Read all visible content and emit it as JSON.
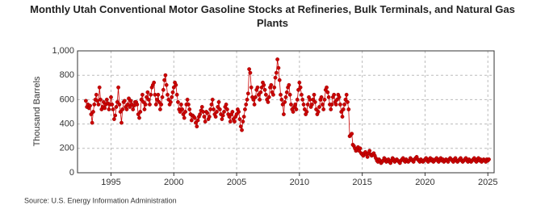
{
  "chart_data": {
    "type": "line",
    "title": "Monthly Utah Conventional Motor Gasoline Stocks at Refineries, Bulk Terminals, and Natural Gas Plants",
    "ylabel": "Thousand Barrels",
    "source": "Source: U.S. Energy Information Administration",
    "color": "#cc0000",
    "grid": true,
    "ylim": [
      0,
      1000
    ],
    "yticks": [
      0,
      200,
      400,
      600,
      800,
      {
        "value": 1000,
        "label": "1,000"
      }
    ],
    "xlim": [
      "1992-05",
      "2025-07"
    ],
    "xticks": [
      "1995",
      "2000",
      "2005",
      "2010",
      "2015",
      "2020",
      "2025"
    ],
    "x": [
      "1993-01",
      "1993-02",
      "1993-03",
      "1993-04",
      "1993-05",
      "1993-06",
      "1993-07",
      "1993-08",
      "1993-09",
      "1993-10",
      "1993-11",
      "1993-12",
      "1994-01",
      "1994-02",
      "1994-03",
      "1994-04",
      "1994-05",
      "1994-06",
      "1994-07",
      "1994-08",
      "1994-09",
      "1994-10",
      "1994-11",
      "1994-12",
      "1995-01",
      "1995-02",
      "1995-03",
      "1995-04",
      "1995-05",
      "1995-06",
      "1995-07",
      "1995-08",
      "1995-09",
      "1995-10",
      "1995-11",
      "1995-12",
      "1996-01",
      "1996-02",
      "1996-03",
      "1996-04",
      "1996-05",
      "1996-06",
      "1996-07",
      "1996-08",
      "1996-09",
      "1996-10",
      "1996-11",
      "1996-12",
      "1997-01",
      "1997-02",
      "1997-03",
      "1997-04",
      "1997-05",
      "1997-06",
      "1997-07",
      "1997-08",
      "1997-09",
      "1997-10",
      "1997-11",
      "1997-12",
      "1998-01",
      "1998-02",
      "1998-03",
      "1998-04",
      "1998-05",
      "1998-06",
      "1998-07",
      "1998-08",
      "1998-09",
      "1998-10",
      "1998-11",
      "1998-12",
      "1999-01",
      "1999-02",
      "1999-03",
      "1999-04",
      "1999-05",
      "1999-06",
      "1999-07",
      "1999-08",
      "1999-09",
      "1999-10",
      "1999-11",
      "1999-12",
      "2000-01",
      "2000-02",
      "2000-03",
      "2000-04",
      "2000-05",
      "2000-06",
      "2000-07",
      "2000-08",
      "2000-09",
      "2000-10",
      "2000-11",
      "2000-12",
      "2001-01",
      "2001-02",
      "2001-03",
      "2001-04",
      "2001-05",
      "2001-06",
      "2001-07",
      "2001-08",
      "2001-09",
      "2001-10",
      "2001-11",
      "2001-12",
      "2002-01",
      "2002-02",
      "2002-03",
      "2002-04",
      "2002-05",
      "2002-06",
      "2002-07",
      "2002-08",
      "2002-09",
      "2002-10",
      "2002-11",
      "2002-12",
      "2003-01",
      "2003-02",
      "2003-03",
      "2003-04",
      "2003-05",
      "2003-06",
      "2003-07",
      "2003-08",
      "2003-09",
      "2003-10",
      "2003-11",
      "2003-12",
      "2004-01",
      "2004-02",
      "2004-03",
      "2004-04",
      "2004-05",
      "2004-06",
      "2004-07",
      "2004-08",
      "2004-09",
      "2004-10",
      "2004-11",
      "2004-12",
      "2005-01",
      "2005-02",
      "2005-03",
      "2005-04",
      "2005-05",
      "2005-06",
      "2005-07",
      "2005-08",
      "2005-09",
      "2005-10",
      "2005-11",
      "2005-12",
      "2006-01",
      "2006-02",
      "2006-03",
      "2006-04",
      "2006-05",
      "2006-06",
      "2006-07",
      "2006-08",
      "2006-09",
      "2006-10",
      "2006-11",
      "2006-12",
      "2007-01",
      "2007-02",
      "2007-03",
      "2007-04",
      "2007-05",
      "2007-06",
      "2007-07",
      "2007-08",
      "2007-09",
      "2007-10",
      "2007-11",
      "2007-12",
      "2008-01",
      "2008-02",
      "2008-03",
      "2008-04",
      "2008-05",
      "2008-06",
      "2008-07",
      "2008-08",
      "2008-09",
      "2008-10",
      "2008-11",
      "2008-12",
      "2009-01",
      "2009-02",
      "2009-03",
      "2009-04",
      "2009-05",
      "2009-06",
      "2009-07",
      "2009-08",
      "2009-09",
      "2009-10",
      "2009-11",
      "2009-12",
      "2010-01",
      "2010-02",
      "2010-03",
      "2010-04",
      "2010-05",
      "2010-06",
      "2010-07",
      "2010-08",
      "2010-09",
      "2010-10",
      "2010-11",
      "2010-12",
      "2011-01",
      "2011-02",
      "2011-03",
      "2011-04",
      "2011-05",
      "2011-06",
      "2011-07",
      "2011-08",
      "2011-09",
      "2011-10",
      "2011-11",
      "2011-12",
      "2012-01",
      "2012-02",
      "2012-03",
      "2012-04",
      "2012-05",
      "2012-06",
      "2012-07",
      "2012-08",
      "2012-09",
      "2012-10",
      "2012-11",
      "2012-12",
      "2013-01",
      "2013-02",
      "2013-03",
      "2013-04",
      "2013-05",
      "2013-06",
      "2013-07",
      "2013-08",
      "2013-09",
      "2013-10",
      "2013-11",
      "2013-12",
      "2014-01",
      "2014-02",
      "2014-03",
      "2014-04",
      "2014-05",
      "2014-06",
      "2014-07",
      "2014-08",
      "2014-09",
      "2014-10",
      "2014-11",
      "2014-12",
      "2015-01",
      "2015-02",
      "2015-03",
      "2015-04",
      "2015-05",
      "2015-06",
      "2015-07",
      "2015-08",
      "2015-09",
      "2015-10",
      "2015-11",
      "2015-12",
      "2016-01",
      "2016-02",
      "2016-03",
      "2016-04",
      "2016-05",
      "2016-06",
      "2016-07",
      "2016-08",
      "2016-09",
      "2016-10",
      "2016-11",
      "2016-12",
      "2017-01",
      "2017-02",
      "2017-03",
      "2017-04",
      "2017-05",
      "2017-06",
      "2017-07",
      "2017-08",
      "2017-09",
      "2017-10",
      "2017-11",
      "2017-12",
      "2018-01",
      "2018-02",
      "2018-03",
      "2018-04",
      "2018-05",
      "2018-06",
      "2018-07",
      "2018-08",
      "2018-09",
      "2018-10",
      "2018-11",
      "2018-12",
      "2019-01",
      "2019-02",
      "2019-03",
      "2019-04",
      "2019-05",
      "2019-06",
      "2019-07",
      "2019-08",
      "2019-09",
      "2019-10",
      "2019-11",
      "2019-12",
      "2020-01",
      "2020-02",
      "2020-03",
      "2020-04",
      "2020-05",
      "2020-06",
      "2020-07",
      "2020-08",
      "2020-09",
      "2020-10",
      "2020-11",
      "2020-12",
      "2021-01",
      "2021-02",
      "2021-03",
      "2021-04",
      "2021-05",
      "2021-06",
      "2021-07",
      "2021-08",
      "2021-09",
      "2021-10",
      "2021-11",
      "2021-12",
      "2022-01",
      "2022-02",
      "2022-03",
      "2022-04",
      "2022-05",
      "2022-06",
      "2022-07",
      "2022-08",
      "2022-09",
      "2022-10",
      "2022-11",
      "2022-12",
      "2023-01",
      "2023-02",
      "2023-03",
      "2023-04",
      "2023-05",
      "2023-06",
      "2023-07",
      "2023-08",
      "2023-09",
      "2023-10",
      "2023-11",
      "2023-12",
      "2024-01",
      "2024-02",
      "2024-03",
      "2024-04",
      "2024-05",
      "2024-06",
      "2024-07",
      "2024-08",
      "2024-09",
      "2024-10",
      "2024-11",
      "2024-12",
      "2025-01",
      "2025-02"
    ],
    "values": [
      590,
      540,
      560,
      530,
      550,
      480,
      410,
      500,
      560,
      600,
      640,
      590,
      560,
      700,
      600,
      520,
      540,
      580,
      530,
      560,
      600,
      570,
      520,
      560,
      620,
      560,
      520,
      440,
      470,
      540,
      580,
      700,
      560,
      500,
      410,
      520,
      580,
      590,
      540,
      520,
      560,
      610,
      540,
      590,
      560,
      520,
      550,
      580,
      580,
      560,
      480,
      450,
      500,
      600,
      640,
      580,
      520,
      560,
      620,
      660,
      600,
      560,
      640,
      700,
      720,
      740,
      640,
      560,
      600,
      640,
      580,
      520,
      560,
      620,
      680,
      760,
      800,
      720,
      640,
      600,
      560,
      580,
      620,
      660,
      700,
      740,
      720,
      640,
      580,
      520,
      500,
      560,
      520,
      480,
      450,
      500,
      560,
      600,
      560,
      520,
      480,
      430,
      470,
      460,
      450,
      410,
      380,
      430,
      460,
      480,
      510,
      540,
      500,
      460,
      420,
      500,
      490,
      440,
      460,
      520,
      560,
      600,
      520,
      480,
      460,
      500,
      540,
      580,
      520,
      480,
      440,
      470,
      500,
      540,
      560,
      520,
      480,
      460,
      420,
      480,
      500,
      440,
      420,
      460,
      480,
      520,
      500,
      440,
      380,
      350,
      420,
      460,
      520,
      560,
      600,
      650,
      850,
      820,
      700,
      620,
      600,
      560,
      620,
      680,
      700,
      640,
      600,
      660,
      700,
      740,
      720,
      680,
      640,
      600,
      580,
      620,
      700,
      720,
      660,
      640,
      700,
      780,
      820,
      930,
      860,
      760,
      640,
      600,
      560,
      480,
      580,
      620,
      660,
      700,
      720,
      640,
      560,
      520,
      500,
      540,
      560,
      520,
      600,
      680,
      740,
      700,
      640,
      600,
      560,
      520,
      480,
      500,
      560,
      620,
      600,
      540,
      560,
      600,
      640,
      580,
      520,
      480,
      500,
      540,
      600,
      620,
      560,
      520,
      600,
      680,
      700,
      660,
      620,
      560,
      520,
      560,
      620,
      640,
      580,
      560,
      600,
      640,
      620,
      560,
      500,
      460,
      520,
      560,
      600,
      640,
      580,
      520,
      300,
      310,
      320,
      230,
      220,
      200,
      180,
      190,
      210,
      180,
      200,
      160,
      150,
      140,
      160,
      170,
      150,
      130,
      160,
      180,
      150,
      140,
      150,
      160,
      140,
      120,
      100,
      90,
      110,
      100,
      80,
      90,
      100,
      120,
      110,
      90,
      100,
      110,
      90,
      80,
      100,
      120,
      110,
      90,
      100,
      110,
      100,
      90,
      80,
      100,
      110,
      120,
      100,
      90,
      110,
      100,
      90,
      100,
      120,
      110,
      100,
      90,
      110,
      120,
      130,
      110,
      100,
      90,
      110,
      100,
      90,
      100,
      110,
      120,
      100,
      90,
      110,
      120,
      100,
      110,
      90,
      100,
      110,
      120,
      100,
      90,
      110,
      120,
      100,
      110,
      90,
      100,
      110,
      100,
      90,
      110,
      120,
      110,
      100,
      90,
      110,
      120,
      100,
      90,
      100,
      110,
      120,
      100,
      90,
      100,
      110,
      120,
      100,
      90,
      110,
      100,
      90,
      100,
      110,
      120,
      100,
      90,
      110,
      120,
      100,
      110,
      90,
      100,
      110,
      100,
      90,
      110,
      100,
      110
    ]
  }
}
